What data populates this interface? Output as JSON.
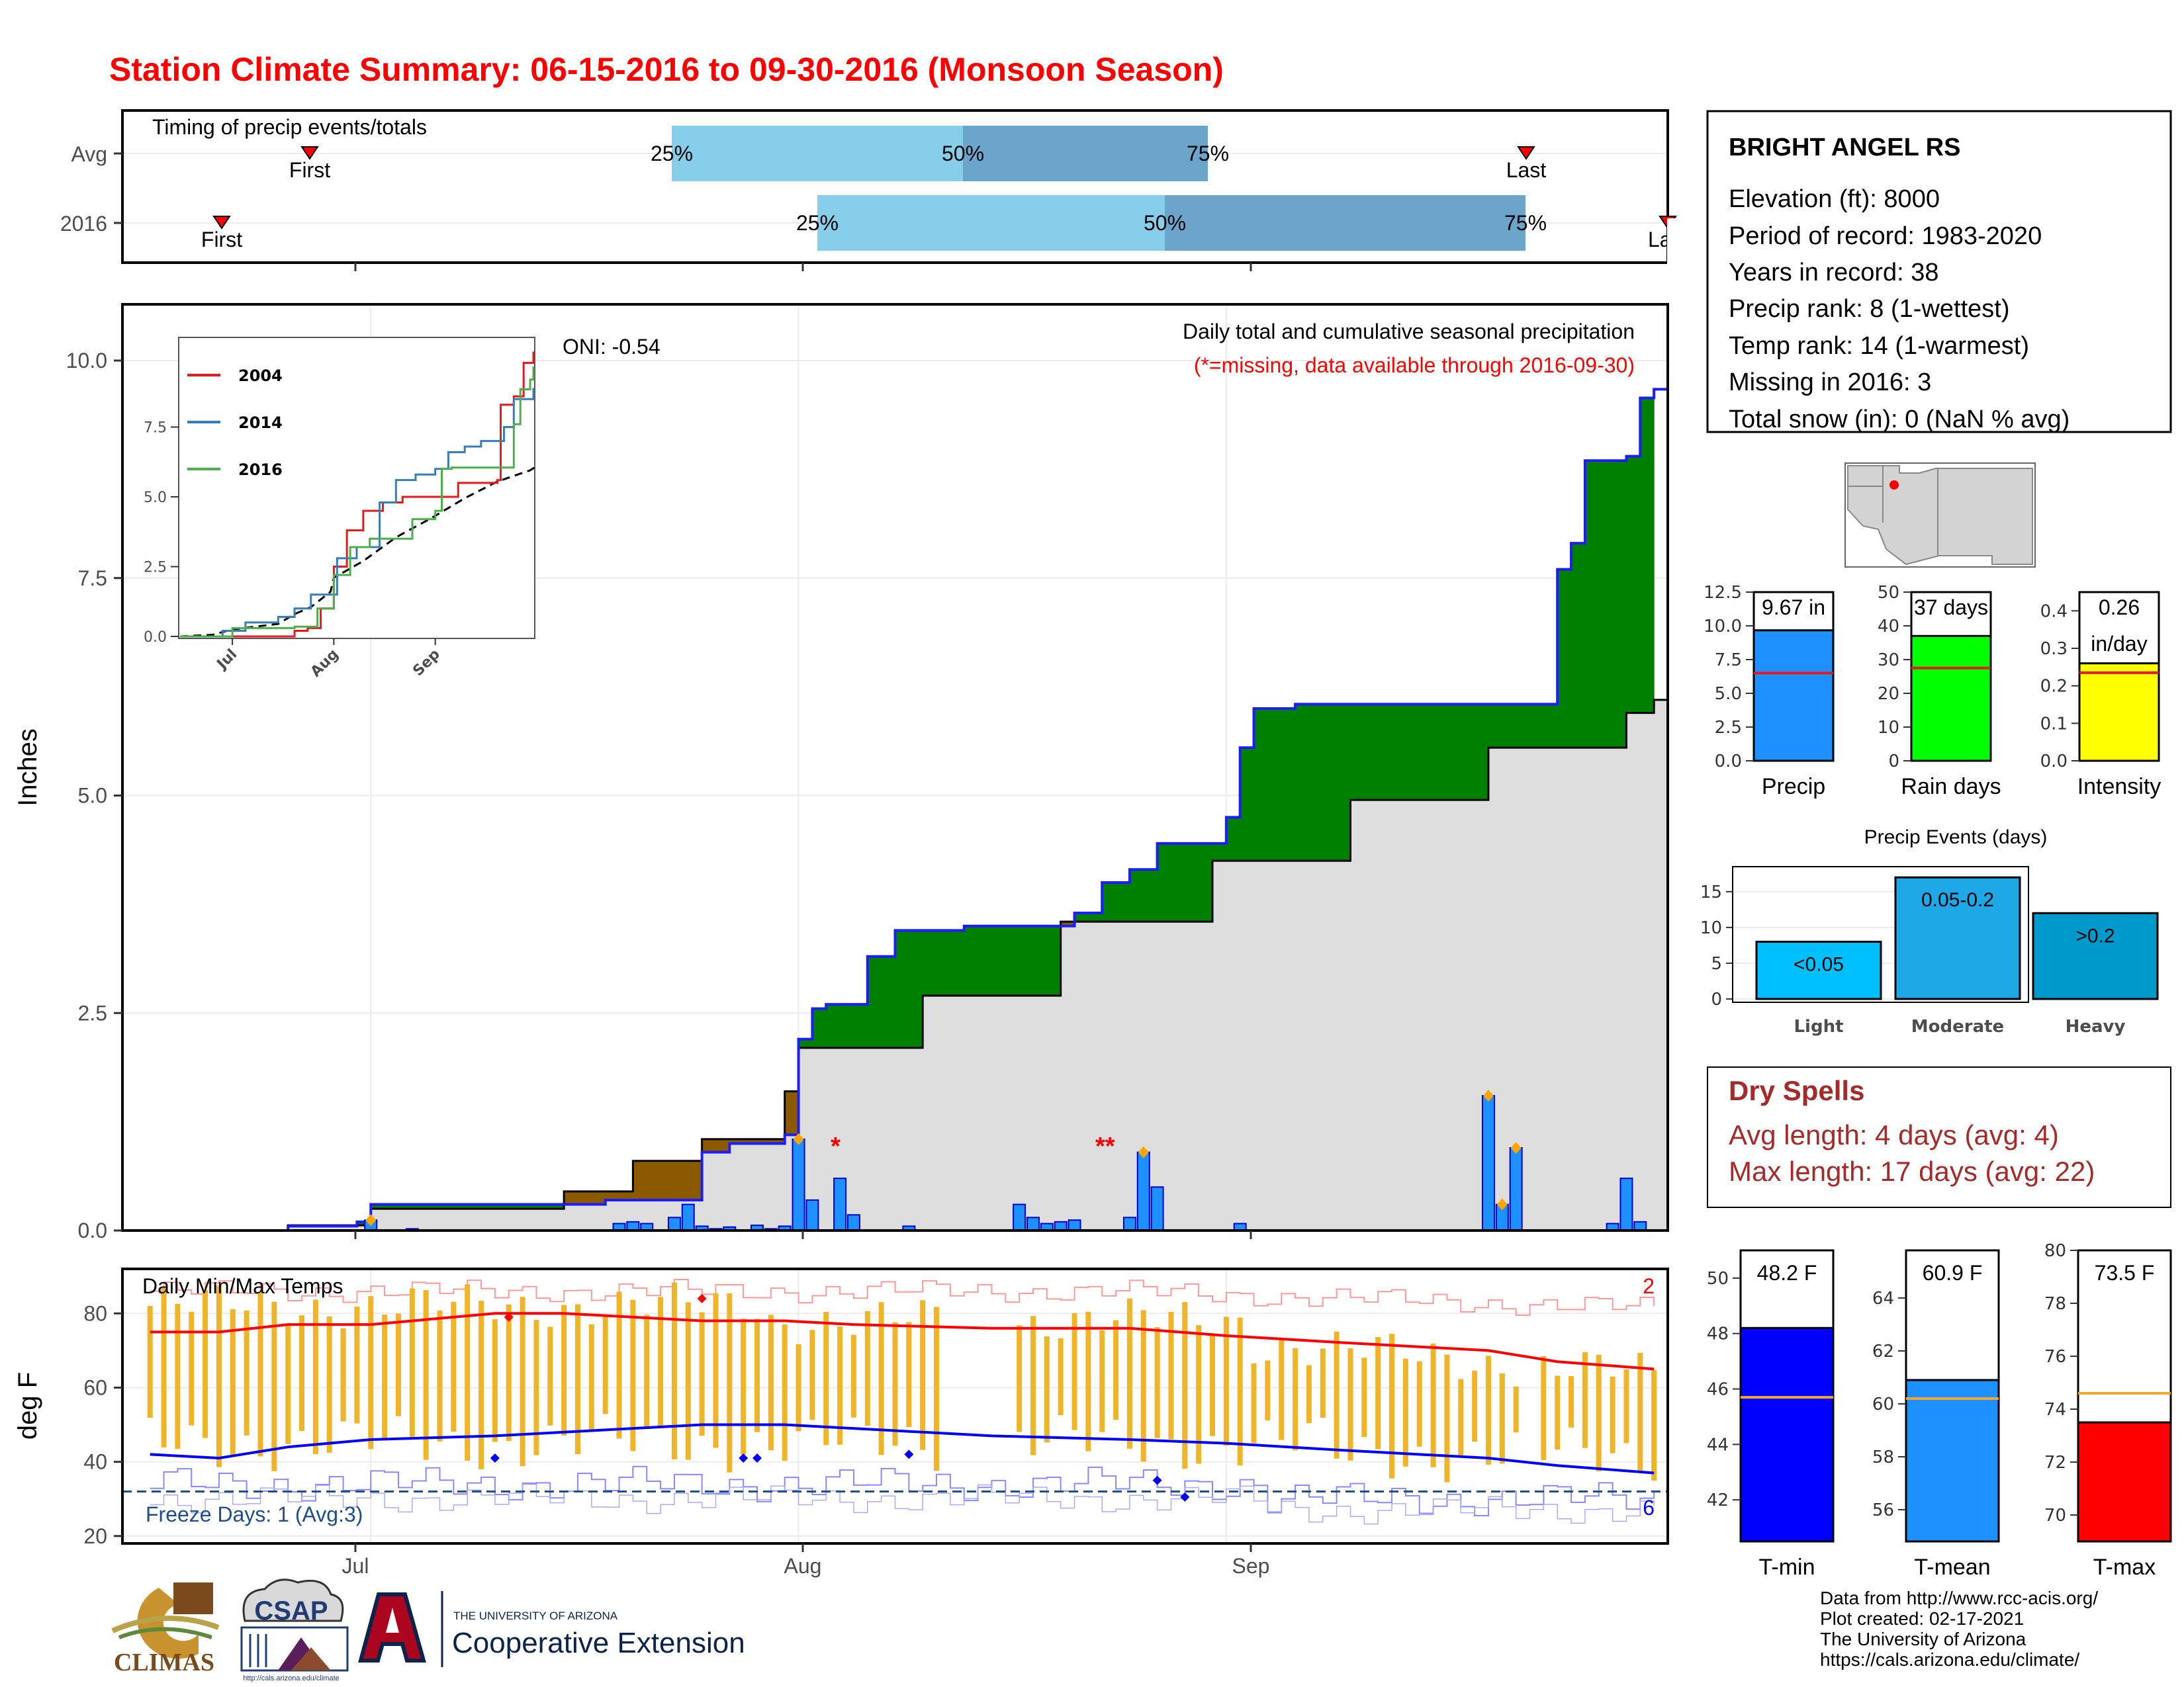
{
  "header": {
    "title": "Station Climate Summary: 06-15-2016 to 09-30-2016 (Monsoon Season)"
  },
  "timing_panel": {
    "label": "Timing of precip events/totals",
    "rows": [
      "Avg",
      "2016"
    ],
    "avg": {
      "first": "First",
      "last": "Last",
      "p25": "25%",
      "p50": "50%",
      "p75": "75%"
    },
    "y2016": {
      "first": "First",
      "last": "La",
      "p25": "25%",
      "p50": "50%",
      "p75": "75%"
    }
  },
  "precip_panel": {
    "ylabel": "Inches",
    "title": "Daily total and cumulative seasonal precipitation",
    "note": "(*=missing, data available through 2016-09-30)",
    "oni": "ONI: -0.54",
    "missing_marks": [
      "*",
      "**"
    ],
    "x_ticks": [
      "Jul",
      "Aug",
      "Sep"
    ],
    "y_ticks": [
      "0.0",
      "2.5",
      "5.0",
      "7.5",
      "10.0"
    ]
  },
  "inset": {
    "series": [
      {
        "name": "2004",
        "color": "#e41a1c"
      },
      {
        "name": "2014",
        "color": "#377eb8"
      },
      {
        "name": "2016",
        "color": "#4daf4a"
      }
    ],
    "y_ticks": [
      "0.0",
      "2.5",
      "5.0",
      "7.5"
    ],
    "x_ticks": [
      "Jul",
      "Aug",
      "Sep"
    ]
  },
  "temp_panel": {
    "ylabel": "deg F",
    "title": "Daily Min/Max Temps",
    "freeze": "Freeze Days: 1 (Avg:3)",
    "count_hot": "2",
    "count_cold": "6",
    "y_ticks": [
      "20",
      "40",
      "60",
      "80"
    ]
  },
  "station": {
    "name": "BRIGHT ANGEL RS",
    "lines": [
      "Elevation (ft): 8000",
      "Period of record: 1983-2020",
      "Years in record: 38",
      "Precip rank: 8 (1-wettest)",
      "Temp rank: 14 (1-warmest)",
      "Missing in 2016: 3",
      "Total snow (in): 0 (NaN % avg)"
    ]
  },
  "summary_bars": [
    {
      "label": "Precip",
      "value_text": "9.67 in",
      "value": 9.67,
      "avg": 6.5,
      "max": 12.5,
      "color": "#1e90ff",
      "ticks": [
        "0.0",
        "2.5",
        "5.0",
        "7.5",
        "10.0",
        "12.5"
      ]
    },
    {
      "label": "Rain days",
      "value_text": "37 days",
      "value": 37,
      "avg": 27.5,
      "max": 50,
      "color": "#00ff00",
      "ticks": [
        "0",
        "10",
        "20",
        "30",
        "40",
        "50"
      ]
    },
    {
      "label": "Intensity",
      "value_text": "0.26",
      "value_text2": "in/day",
      "value": 0.26,
      "avg": 0.235,
      "max": 0.45,
      "color": "#ffff00",
      "ticks": [
        "0.0",
        "0.1",
        "0.2",
        "0.3",
        "0.4"
      ]
    }
  ],
  "precip_events": {
    "title": "Precip Events (days)",
    "y_ticks": [
      "0",
      "5",
      "10",
      "15"
    ],
    "bars": [
      {
        "label": "Light",
        "value_text": "<0.05",
        "value": 8,
        "color": "#00bfff"
      },
      {
        "label": "Moderate",
        "value_text": "0.05-0.2",
        "value": 17,
        "color": "#1ea8e6"
      },
      {
        "label": "Heavy",
        "value_text": ">0.2",
        "value": 12,
        "color": "#0099cc"
      }
    ]
  },
  "dry_spells": {
    "title": "Dry Spells",
    "avg": "Avg length: 4 days (avg: 4)",
    "max": "Max length: 17 days (avg: 22)"
  },
  "temp_bars": [
    {
      "label": "T-min",
      "value_text": "48.2 F",
      "value": 48.2,
      "avg": 45.7,
      "min": 40.5,
      "max": 51,
      "color": "#0000ff",
      "ticks": [
        "42",
        "44",
        "46",
        "48",
        "50"
      ]
    },
    {
      "label": "T-mean",
      "value_text": "60.9 F",
      "value": 60.9,
      "avg": 60.2,
      "min": 54.8,
      "max": 65.8,
      "color": "#1e90ff",
      "ticks": [
        "56",
        "58",
        "60",
        "62",
        "64"
      ]
    },
    {
      "label": "T-max",
      "value_text": "73.5 F",
      "value": 73.5,
      "avg": 74.6,
      "min": 69,
      "max": 80,
      "color": "#ff0000",
      "ticks": [
        "70",
        "72",
        "74",
        "76",
        "78",
        "80"
      ]
    }
  ],
  "footer": {
    "logo1": "CLIMAS",
    "logo2": "CSAP",
    "logo2_url": "http://cals.arizona.edu/climate",
    "ua_small": "THE UNIVERSITY OF ARIZONA",
    "ua_big": "Cooperative Extension",
    "credits": [
      "Data from http://www.rcc-acis.org/",
      "Plot created: 02-17-2021",
      "The University of Arizona",
      "https://cals.arizona.edu/climate/"
    ]
  },
  "chart_data": [
    {
      "type": "area",
      "title": "Daily total and cumulative seasonal precipitation",
      "ylabel": "Inches",
      "ylim": [
        0,
        10.5
      ],
      "x_start": "2016-06-15",
      "x_end": "2016-09-30",
      "series": [
        {
          "name": "",
          "points": [
            [
              "2016-06-15",
              0.0
            ],
            [
              "2016-06-25",
              0.05
            ],
            [
              "2016-06-30",
              0.1
            ],
            [
              "2016-07-01",
              0.3
            ],
            [
              "2016-07-15",
              0.3
            ],
            [
              "2016-07-18",
              0.35
            ],
            [
              "2016-07-25",
              0.9
            ],
            [
              "2016-07-27",
              1.0
            ],
            [
              "2016-07-31",
              1.1
            ],
            [
              "2016-08-01",
              2.2
            ],
            [
              "2016-08-02",
              2.55
            ],
            [
              "2016-08-03",
              2.6
            ],
            [
              "2016-08-06",
              3.15
            ],
            [
              "2016-08-08",
              3.45
            ],
            [
              "2016-08-13",
              3.5
            ],
            [
              "2016-08-20",
              3.5
            ],
            [
              "2016-08-21",
              3.65
            ],
            [
              "2016-08-23",
              4.0
            ],
            [
              "2016-08-25",
              4.15
            ],
            [
              "2016-08-27",
              4.45
            ],
            [
              "2016-08-31",
              4.45
            ],
            [
              "2016-09-01",
              4.75
            ],
            [
              "2016-09-02",
              5.55
            ],
            [
              "2016-09-03",
              6.0
            ],
            [
              "2016-09-05",
              6.0
            ],
            [
              "2016-09-06",
              6.05
            ],
            [
              "2016-09-24",
              6.05
            ],
            [
              "2016-09-25",
              7.6
            ],
            [
              "2016-09-26",
              7.9
            ],
            [
              "2016-09-27",
              8.85
            ],
            [
              "2016-09-30",
              8.9
            ],
            [
              "2016-10-01",
              9.57
            ],
            [
              "2016-10-02",
              9.67
            ]
          ]
        },
        {
          "name": "",
          "points": [
            [
              "2016-06-15",
              0.0
            ],
            [
              "2016-06-25",
              0.06
            ],
            [
              "2016-07-01",
              0.25
            ],
            [
              "2016-07-15",
              0.45
            ],
            [
              "2016-07-20",
              0.8
            ],
            [
              "2016-07-25",
              1.05
            ],
            [
              "2016-07-31",
              1.6
            ],
            [
              "2016-08-01",
              2.1
            ],
            [
              "2016-08-10",
              2.7
            ],
            [
              "2016-08-20",
              3.55
            ],
            [
              "2016-08-31",
              4.25
            ],
            [
              "2016-09-10",
              4.95
            ],
            [
              "2016-09-20",
              5.55
            ],
            [
              "2016-09-30",
              5.95
            ],
            [
              "2016-10-02",
              6.1
            ]
          ]
        }
      ],
      "daily_bars": [
        [
          "2016-07-01",
          0.12
        ],
        [
          "2016-07-04",
          0.02
        ],
        [
          "2016-07-19",
          0.08
        ],
        [
          "2016-07-20",
          0.1
        ],
        [
          "2016-07-21",
          0.08
        ],
        [
          "2016-07-23",
          0.15
        ],
        [
          "2016-07-24",
          0.3
        ],
        [
          "2016-07-25",
          0.05
        ],
        [
          "2016-07-26",
          0.02
        ],
        [
          "2016-07-27",
          0.04
        ],
        [
          "2016-07-29",
          0.06
        ],
        [
          "2016-07-30",
          0.02
        ],
        [
          "2016-07-31",
          0.05
        ],
        [
          "2016-08-01",
          1.05
        ],
        [
          "2016-08-02",
          0.35
        ],
        [
          "2016-08-04",
          0.6
        ],
        [
          "2016-08-05",
          0.18
        ],
        [
          "2016-08-09",
          0.05
        ],
        [
          "2016-08-17",
          0.3
        ],
        [
          "2016-08-18",
          0.15
        ],
        [
          "2016-08-19",
          0.08
        ],
        [
          "2016-08-20",
          0.1
        ],
        [
          "2016-08-21",
          0.12
        ],
        [
          "2016-08-25",
          0.15
        ],
        [
          "2016-08-26",
          0.9
        ],
        [
          "2016-08-27",
          0.5
        ],
        [
          "2016-09-02",
          0.08
        ],
        [
          "2016-09-20",
          1.55
        ],
        [
          "2016-09-21",
          0.3
        ],
        [
          "2016-09-22",
          0.95
        ],
        [
          "2016-09-29",
          0.08
        ],
        [
          "2016-09-30",
          0.6
        ],
        [
          "2016-10-01",
          0.1
        ]
      ]
    },
    {
      "type": "line",
      "title": "Daily Min/Max Temps",
      "ylabel": "deg F",
      "ylim": [
        18,
        92
      ],
      "freeze_line": 32,
      "series": [
        {
          "name": "",
          "color": "#ff0000",
          "points": [
            [
              "2016-06-15",
              75
            ],
            [
              "2016-06-20",
              75
            ],
            [
              "2016-06-25",
              77
            ],
            [
              "2016-07-01",
              77
            ],
            [
              "2016-07-10",
              80
            ],
            [
              "2016-07-15",
              80
            ],
            [
              "2016-07-20",
              79
            ],
            [
              "2016-07-25",
              78
            ],
            [
              "2016-07-31",
              78
            ],
            [
              "2016-08-05",
              77
            ],
            [
              "2016-08-15",
              76
            ],
            [
              "2016-08-25",
              76
            ],
            [
              "2016-09-01",
              74
            ],
            [
              "2016-09-10",
              72
            ],
            [
              "2016-09-20",
              70
            ],
            [
              "2016-09-25",
              67
            ],
            [
              "2016-10-02",
              65
            ]
          ]
        },
        {
          "name": "",
          "color": "#0000ff",
          "points": [
            [
              "2016-06-15",
              42
            ],
            [
              "2016-06-20",
              41
            ],
            [
              "2016-06-25",
              44
            ],
            [
              "2016-07-01",
              46
            ],
            [
              "2016-07-10",
              47
            ],
            [
              "2016-07-15",
              48
            ],
            [
              "2016-07-20",
              49
            ],
            [
              "2016-07-25",
              50
            ],
            [
              "2016-07-31",
              50
            ],
            [
              "2016-08-05",
              49
            ],
            [
              "2016-08-15",
              47
            ],
            [
              "2016-08-25",
              46
            ],
            [
              "2016-09-01",
              45
            ],
            [
              "2016-09-10",
              43
            ],
            [
              "2016-09-20",
              41
            ],
            [
              "2016-09-25",
              39
            ],
            [
              "2016-10-02",
              37
            ]
          ]
        }
      ]
    },
    {
      "type": "bar",
      "title": "Precip Events (days)",
      "categories": [
        "Light",
        "Moderate",
        "Heavy"
      ],
      "values": [
        8,
        17,
        12
      ]
    }
  ]
}
